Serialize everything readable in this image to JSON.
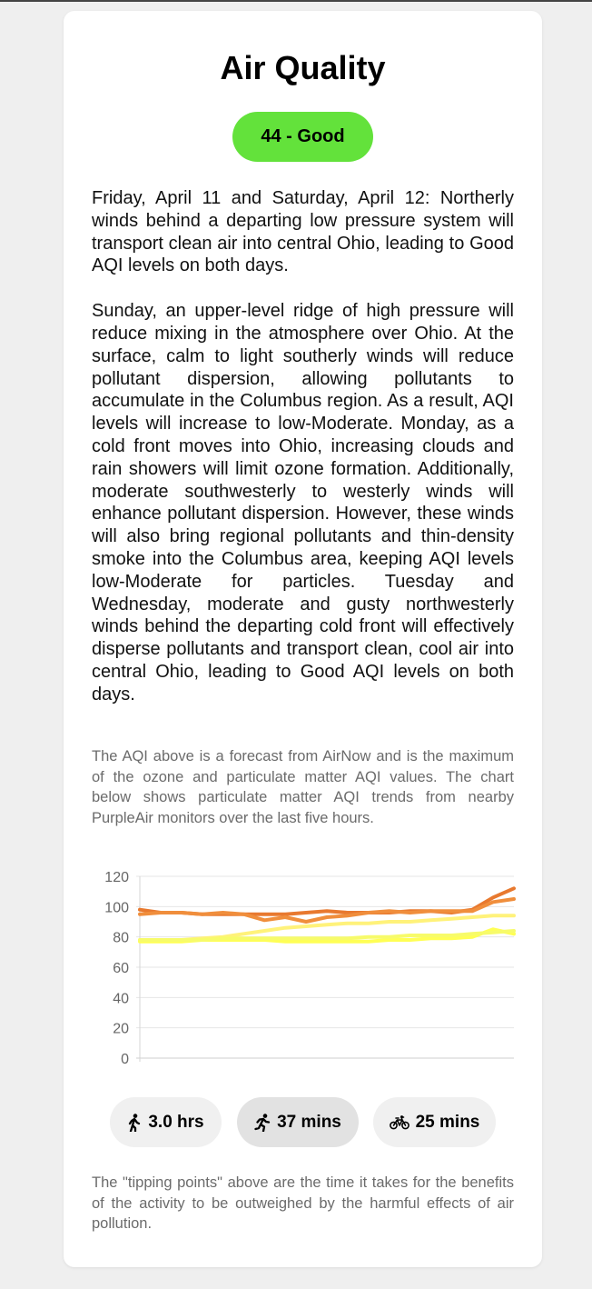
{
  "title": "Air Quality",
  "aqi_badge": {
    "label": "44 - Good",
    "color": "#63e23b"
  },
  "forecast_paragraphs": [
    "Friday, April 11 and Saturday, April 12: Northerly winds behind a departing low pressure system will transport clean air into central Ohio, leading to Good AQI levels on both days.",
    "Sunday, an upper-level ridge of high pressure will reduce mixing in the atmosphere over Ohio. At the surface, calm to light southerly winds will reduce pollutant dispersion, allowing pollutants to accumulate in the Columbus region. As a result, AQI levels will increase to low-Moderate. Monday, as a cold front moves into Ohio, increasing clouds and rain showers will limit ozone formation. Additionally, moderate southwesterly to westerly winds will enhance pollutant dispersion. However, these winds will also bring regional pollutants and thin-density smoke into the Columbus area, keeping AQI levels low-Moderate for particles. Tuesday and Wednesday, moderate and gusty northwesterly winds behind the departing cold front will effectively disperse pollutants and transport clean, cool air into central Ohio, leading to Good AQI levels on both days."
  ],
  "chart_note": "The AQI above is a forecast from AirNow and is the maximum of the ozone and particulate matter AQI values. The chart below shows particulate matter AQI trends from nearby PurpleAir monitors over the last five hours.",
  "chart_data": {
    "type": "line",
    "title": "",
    "xlabel": "",
    "ylabel": "",
    "ylim": [
      0,
      120
    ],
    "yticks": [
      "0",
      "20",
      "40",
      "60",
      "80",
      "100",
      "120"
    ],
    "grid": true,
    "x": [
      0,
      1,
      2,
      3,
      4,
      5,
      6,
      7,
      8,
      9,
      10,
      11,
      12,
      13,
      14,
      15,
      16,
      17,
      18
    ],
    "series": [
      {
        "color": "#e8792f",
        "values": [
          98,
          96,
          96,
          95,
          95,
          95,
          95,
          95,
          96,
          97,
          96,
          96,
          96,
          97,
          97,
          96,
          98,
          106,
          112
        ]
      },
      {
        "color": "#f08e3c",
        "values": [
          95,
          96,
          96,
          95,
          96,
          95,
          91,
          93,
          90,
          93,
          94,
          96,
          97,
          96,
          97,
          97,
          97,
          103,
          105
        ]
      },
      {
        "color": "#fff27a",
        "values": [
          78,
          78,
          78,
          79,
          80,
          82,
          84,
          86,
          87,
          88,
          89,
          89,
          90,
          90,
          91,
          92,
          93,
          94,
          94
        ]
      },
      {
        "color": "#ffff55",
        "values": [
          77,
          77,
          77,
          78,
          78,
          78,
          78,
          77,
          77,
          77,
          77,
          77,
          78,
          78,
          79,
          79,
          80,
          85,
          82
        ]
      },
      {
        "color": "#f7fb6a",
        "values": [
          78,
          78,
          78,
          78,
          79,
          79,
          79,
          79,
          79,
          79,
          79,
          80,
          80,
          81,
          81,
          81,
          82,
          83,
          84
        ]
      }
    ]
  },
  "tipping_points": [
    {
      "icon": "walking-icon",
      "label": "3.0 hrs",
      "bg": "#f0f0f0"
    },
    {
      "icon": "running-icon",
      "label": "37 mins",
      "bg": "#e2e2e2"
    },
    {
      "icon": "bicycle-icon",
      "label": "25 mins",
      "bg": "#f0f0f0"
    }
  ],
  "tipping_note": "The \"tipping points\" above are the time it takes for the benefits of the activity to be outweighed by the harmful effects of air pollution."
}
